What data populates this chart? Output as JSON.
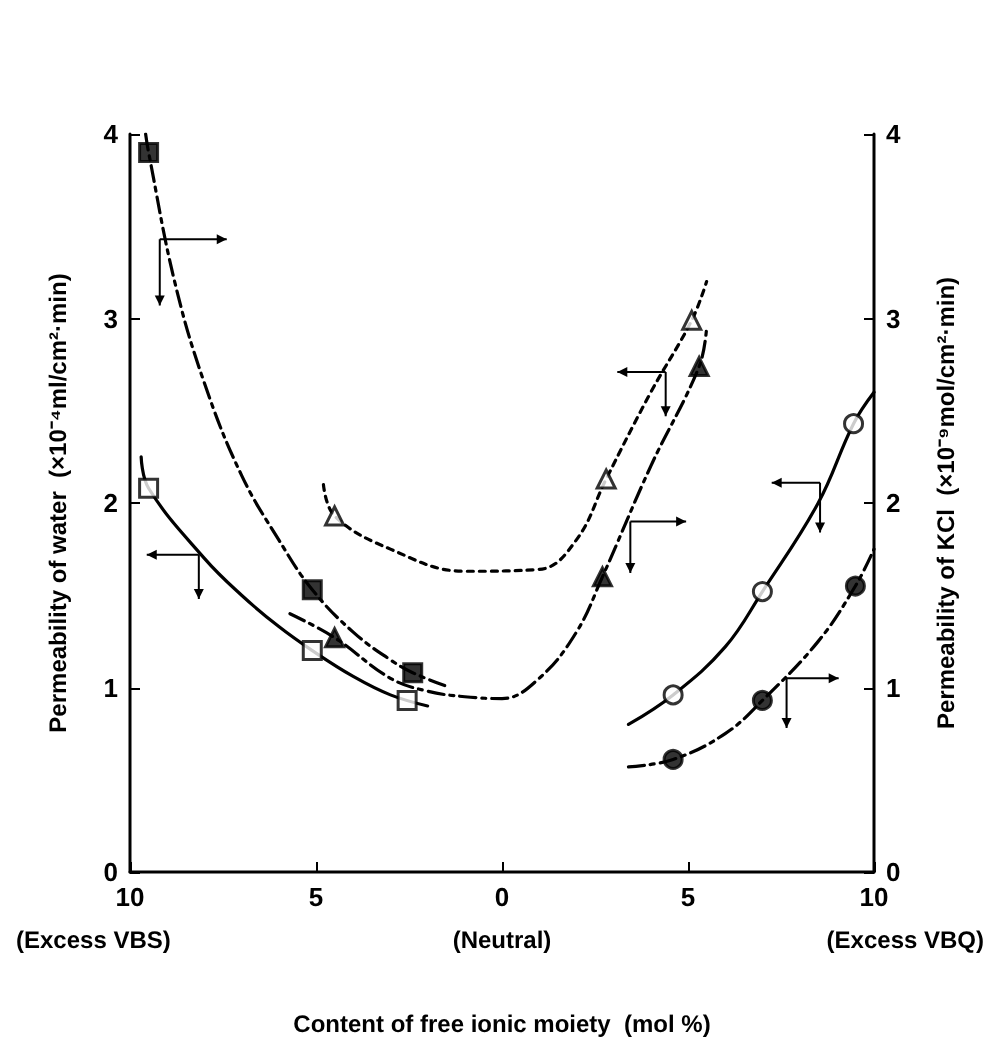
{
  "chart_data": {
    "type": "scatter",
    "xlabel": "Content of free ionic moiety  (mol %)",
    "ylabel": "Permeability of water  (×10⁻⁴ml/cm²·min)",
    "y2label": "Permeability of KCl  (×10⁻⁹mol/cm²·min)",
    "annotations": [
      "(Excess VBS)",
      "(Neutral)",
      "(Excess VBQ)"
    ],
    "xlim": [
      -10,
      10
    ],
    "xticks": [
      {
        "value": -10,
        "label": "10"
      },
      {
        "value": -5,
        "label": "5"
      },
      0,
      5,
      10
    ],
    "ylim": [
      0,
      4
    ],
    "yticks": [
      0,
      1,
      2,
      3,
      4
    ],
    "y2lim": [
      0,
      4
    ],
    "y2ticks": [
      0,
      1,
      2,
      3,
      4
    ],
    "grid": false,
    "series": [
      {
        "axis": "y2",
        "marker": "square",
        "color": "#000000",
        "x": [
          -9.5,
          -5.1,
          -2.4
        ],
        "values": [
          3.9,
          1.53,
          1.08
        ]
      },
      {
        "axis": "y",
        "marker": "square",
        "color": "#ffffff",
        "x": [
          -9.5,
          -5.1,
          -2.55
        ],
        "values": [
          2.08,
          1.2,
          0.93
        ]
      },
      {
        "axis": "y",
        "marker": "triangle",
        "color": "#ffffff",
        "x": [
          -4.5,
          2.8,
          5.1
        ],
        "values": [
          1.93,
          2.13,
          2.99
        ]
      },
      {
        "axis": "y2",
        "marker": "triangle",
        "color": "#000000",
        "x": [
          -4.5,
          2.7,
          5.3
        ],
        "values": [
          1.27,
          1.6,
          2.74
        ]
      },
      {
        "axis": "y",
        "marker": "circle",
        "color": "#ffffff",
        "x": [
          4.6,
          7.0,
          9.45
        ],
        "values": [
          0.96,
          1.52,
          2.43
        ]
      },
      {
        "axis": "y2",
        "marker": "circle",
        "color": "#000000",
        "x": [
          4.6,
          7.0,
          9.5
        ],
        "values": [
          0.61,
          0.93,
          1.55
        ]
      },
      {
        "type": "line",
        "marker": "none",
        "line_style": "dashed",
        "color": "#000000",
        "x": [
          -9.58,
          -9.5,
          -8.8,
          -8,
          -7,
          -6,
          -5.1,
          -4,
          -3,
          -2.4,
          -1.4
        ],
        "values": [
          4.0,
          3.9,
          3.2,
          2.65,
          2.15,
          1.8,
          1.53,
          1.3,
          1.15,
          1.08,
          1.0
        ]
      },
      {
        "type": "line",
        "marker": "none",
        "line_style": "solid",
        "color": "#000000",
        "x": [
          -9.7,
          -9.5,
          -8,
          -7,
          -6,
          -5.1,
          -4,
          -3,
          -2
        ],
        "values": [
          2.25,
          2.08,
          1.7,
          1.5,
          1.33,
          1.2,
          1.06,
          0.96,
          0.9
        ]
      },
      {
        "type": "line",
        "marker": "none",
        "line_style": "dotted",
        "color": "#000000",
        "x": [
          -4.8,
          -4.5,
          -3,
          -1,
          1,
          2,
          2.8,
          4,
          5.1,
          5.5
        ],
        "values": [
          2.1,
          1.93,
          1.75,
          1.63,
          1.64,
          1.8,
          2.13,
          2.6,
          2.99,
          3.2
        ]
      },
      {
        "type": "line",
        "marker": "none",
        "line_style": "dashed",
        "color": "#000000",
        "x": [
          -5.7,
          -4.5,
          -3,
          -2,
          -1,
          0,
          1,
          2,
          2.7,
          4,
          5.3,
          5.5
        ],
        "values": [
          1.4,
          1.27,
          1.05,
          0.98,
          0.95,
          0.94,
          1.05,
          1.3,
          1.6,
          2.2,
          2.74,
          2.95
        ]
      },
      {
        "type": "line",
        "marker": "none",
        "line_style": "solid",
        "color": "#000000",
        "x": [
          3.4,
          4.6,
          6,
          7,
          8.5,
          9.45,
          10
        ],
        "values": [
          0.8,
          0.96,
          1.22,
          1.52,
          2.0,
          2.43,
          2.6
        ]
      },
      {
        "type": "line",
        "marker": "none",
        "line_style": "dashed",
        "color": "#000000",
        "x": [
          3.4,
          4.6,
          6,
          7,
          8.5,
          9.5,
          10
        ],
        "values": [
          0.57,
          0.61,
          0.75,
          0.93,
          1.25,
          1.55,
          1.75
        ]
      }
    ]
  }
}
